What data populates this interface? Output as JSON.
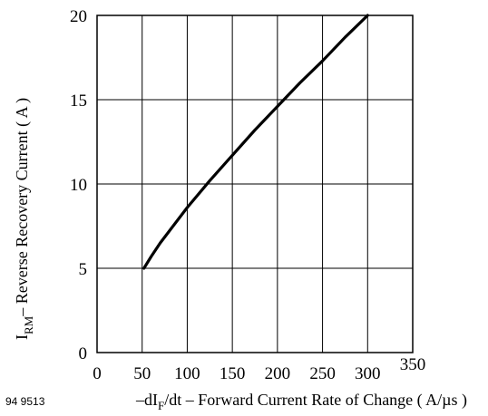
{
  "figure_id": "94 9513",
  "chart_data": {
    "type": "line",
    "title": "",
    "xlabel": {
      "prefix": "–dI",
      "subscript": "F",
      "suffix": "/dt – Forward Current Rate of Change ( A/µs )"
    },
    "ylabel": {
      "prefix": "I",
      "subscript": "RM",
      "suffix": "– Reverse Recovery Current ( A )"
    },
    "xlim": [
      0,
      350
    ],
    "ylim": [
      0,
      20
    ],
    "x_ticks": [
      0,
      50,
      100,
      150,
      200,
      250,
      300,
      350
    ],
    "y_ticks": [
      0,
      5,
      10,
      15,
      20
    ],
    "grid": true,
    "series": [
      {
        "x": [
          52,
          60,
          70,
          80,
          100,
          125,
          150,
          175,
          200,
          225,
          250,
          275,
          300
        ],
        "y": [
          5.0,
          5.7,
          6.5,
          7.2,
          8.6,
          10.2,
          11.7,
          13.2,
          14.6,
          16.0,
          17.3,
          18.7,
          20.0
        ]
      }
    ],
    "colors": {
      "line": "#000000",
      "grid": "#000000"
    }
  }
}
